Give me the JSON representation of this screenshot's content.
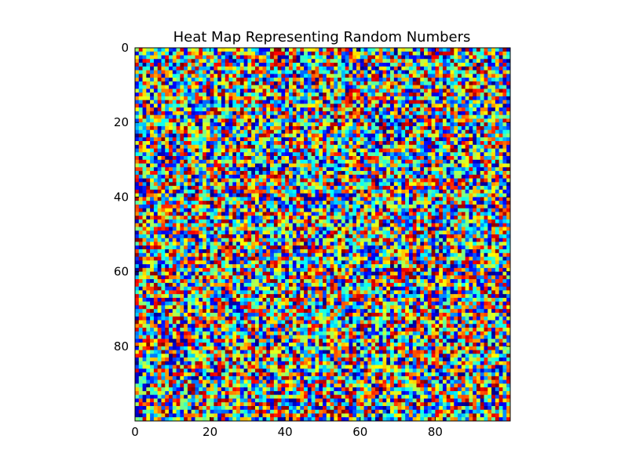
{
  "chart_data": {
    "type": "heatmap",
    "title": "Heat Map Representing Random Numbers",
    "xlabel": "",
    "ylabel": "",
    "rows": 100,
    "cols": 100,
    "xlim": [
      0,
      100
    ],
    "ylim": [
      100,
      0
    ],
    "x_ticks": [
      0,
      20,
      40,
      60,
      80
    ],
    "y_ticks": [
      0,
      20,
      40,
      60,
      80
    ],
    "value_range": [
      0,
      1
    ],
    "colormap": "jet",
    "colormap_stops": [
      "#00007f",
      "#0000ff",
      "#007fff",
      "#00ffff",
      "#7fff7f",
      "#ffff00",
      "#ff7f00",
      "#ff0000",
      "#7f0000"
    ],
    "values_note_shown": null,
    "grid": false,
    "legend": "none"
  }
}
